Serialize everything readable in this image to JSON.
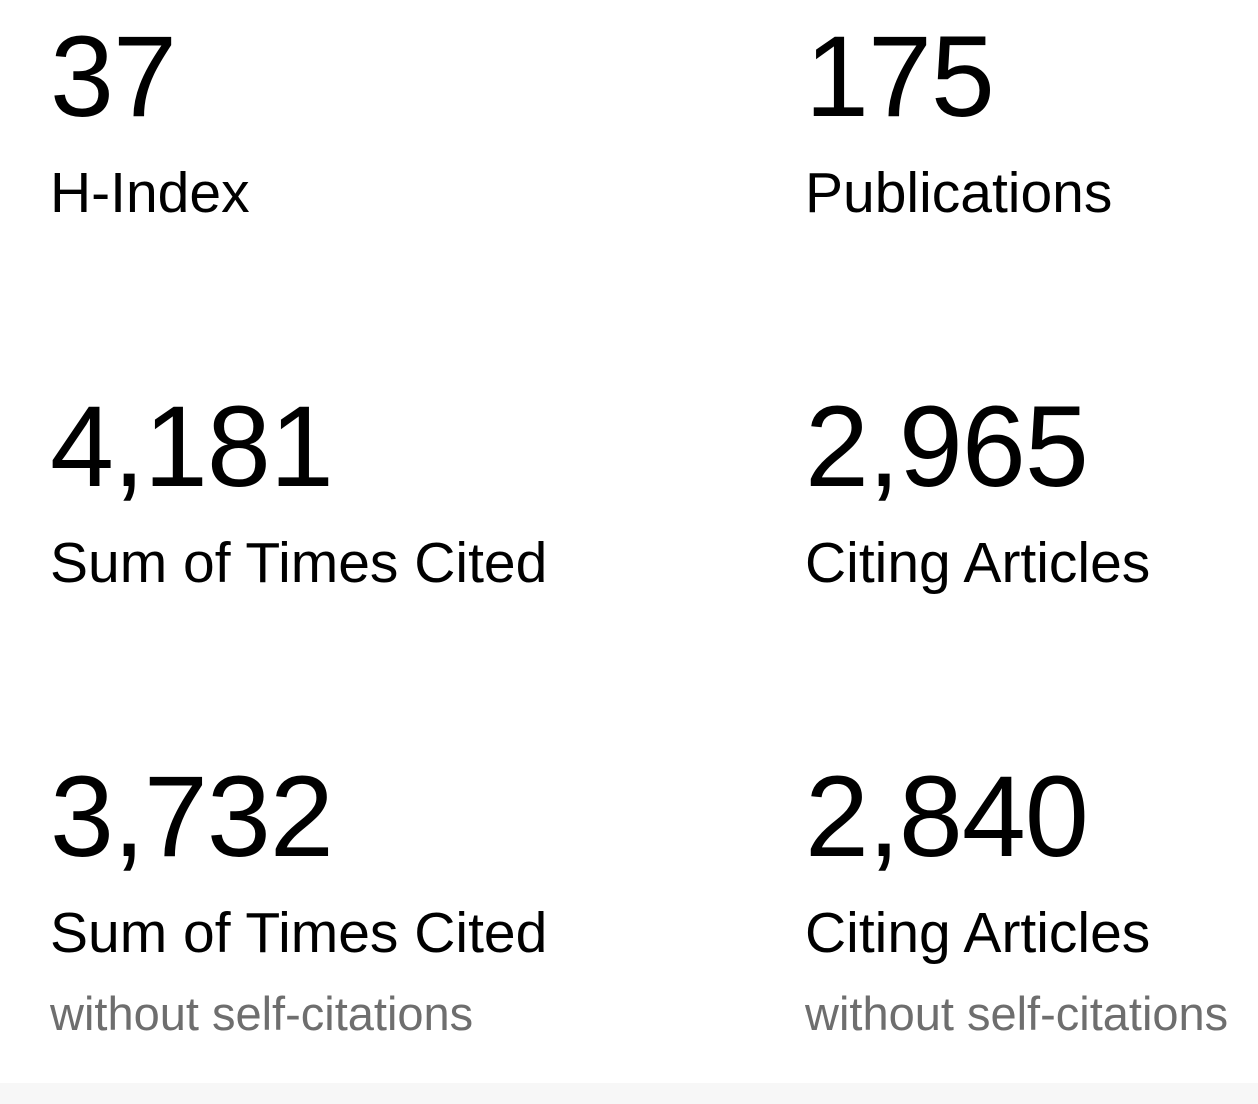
{
  "panel": {
    "name": "citation-metrics",
    "colors": {
      "text": "#000000",
      "sublabel_text": "#6e6e6e",
      "background": "#ffffff",
      "bottom_strip": "#f7f7f7"
    },
    "metrics": [
      {
        "value": "37",
        "label": "H-Index"
      },
      {
        "value": "175",
        "label": "Publications"
      },
      {
        "value": "4,181",
        "label": "Sum of Times Cited"
      },
      {
        "value": "2,965",
        "label": "Citing Articles"
      },
      {
        "value": "3,732",
        "label": "Sum of Times Cited",
        "sublabel": "without self-citations"
      },
      {
        "value": "2,840",
        "label": "Citing Articles",
        "sublabel": "without self-citations"
      }
    ]
  }
}
